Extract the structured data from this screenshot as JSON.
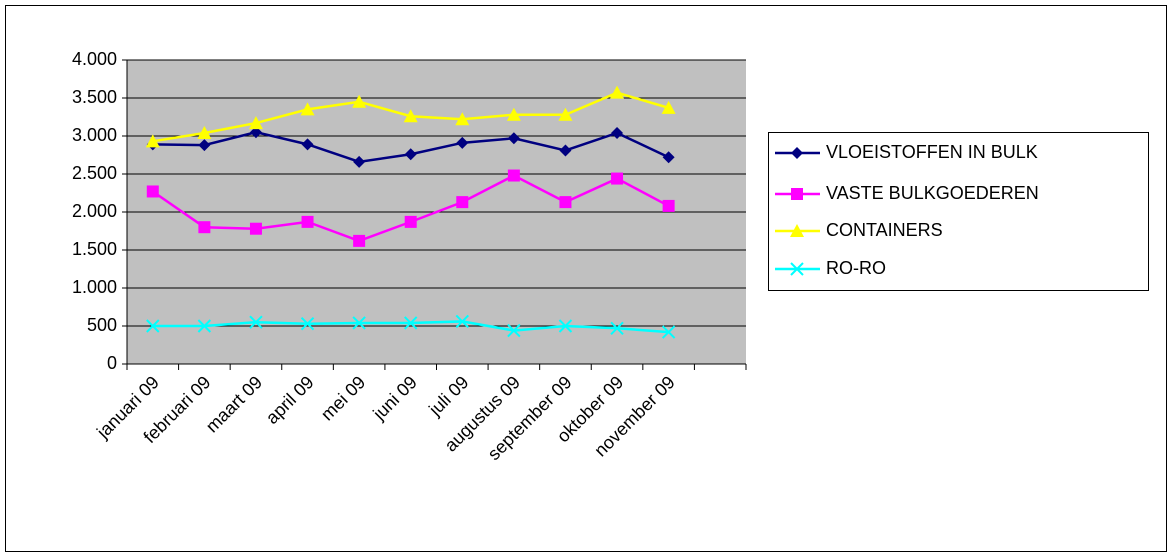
{
  "chart_data": {
    "type": "line",
    "categories": [
      "januari 09",
      "februari 09",
      "maart 09",
      "april 09",
      "mei 09",
      "juni 09",
      "juli 09",
      "augustus 09",
      "september 09",
      "oktober 09",
      "november 09",
      null
    ],
    "series": [
      {
        "name": "VLOEISTOFFEN IN BULK",
        "color": "#000080",
        "marker": "diamond",
        "values": [
          2890,
          2880,
          3050,
          2890,
          2660,
          2760,
          2910,
          2970,
          2810,
          3040,
          2720,
          null
        ]
      },
      {
        "name": "VASTE BULKGOEDEREN",
        "color": "#ff00ff",
        "marker": "square",
        "values": [
          2270,
          1800,
          1780,
          1870,
          1620,
          1870,
          2130,
          2480,
          2130,
          2440,
          2080,
          null
        ]
      },
      {
        "name": "CONTAINERS",
        "color": "#ffff00",
        "marker": "triangle",
        "values": [
          2930,
          3040,
          3170,
          3350,
          3450,
          3260,
          3220,
          3280,
          3280,
          3570,
          3370,
          null
        ]
      },
      {
        "name": "RO-RO",
        "color": "#00ffff",
        "marker": "x",
        "values": [
          500,
          500,
          550,
          530,
          540,
          540,
          560,
          440,
          500,
          470,
          420,
          null
        ]
      }
    ],
    "ylim": [
      0,
      4000
    ],
    "yticks": [
      0,
      500,
      {
        "value": 1000,
        "label": "1.000"
      },
      {
        "value": 1500,
        "label": "1.500"
      },
      {
        "value": 2000,
        "label": "2.000"
      },
      {
        "value": 2500,
        "label": "2.500"
      },
      {
        "value": 3000,
        "label": "3.000"
      },
      {
        "value": 3500,
        "label": "3.500"
      },
      {
        "value": 4000,
        "label": "4.000"
      }
    ],
    "grid": true,
    "legend": "right"
  }
}
